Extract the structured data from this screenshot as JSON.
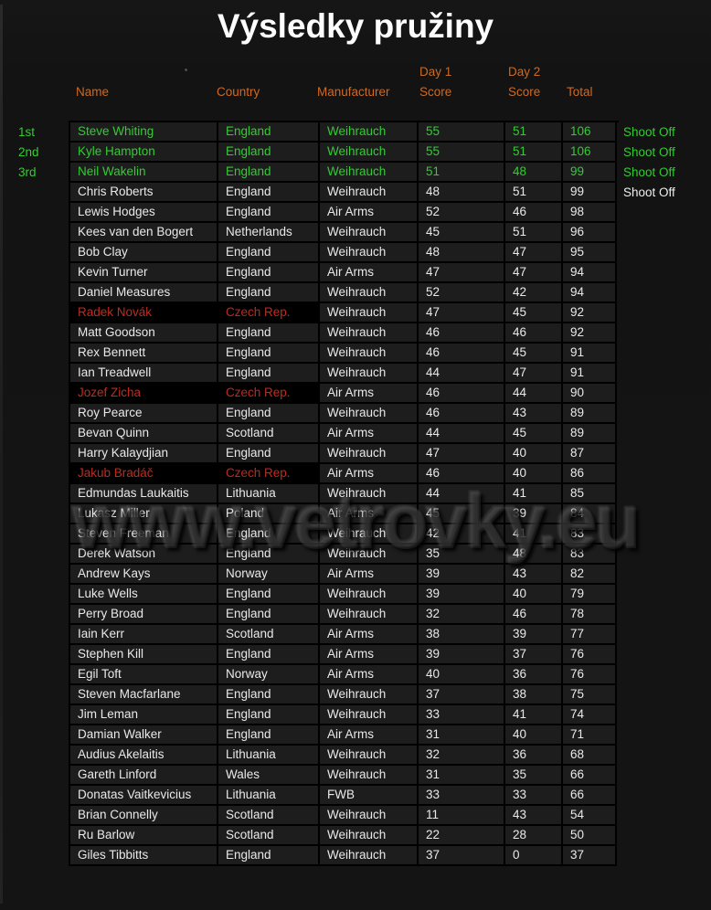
{
  "title": "Výsledky pružiny",
  "watermark": "www.vetrovky.eu",
  "colors": {
    "accent_orange": "#cd6a24",
    "highlight_green": "#33cc33",
    "highlight_red": "#bf2b1f",
    "row_background": "#1d1d1d",
    "czech_cell_background": "#000000",
    "grid": "#000000",
    "text": "#e9e9e9",
    "page_background": "#141414"
  },
  "header": {
    "name": "Name",
    "country": "Country",
    "manufacturer": "Manufacturer",
    "day1": "Day 1",
    "day2": "Day 2",
    "score": "Score",
    "total": "Total"
  },
  "table": {
    "rows": [
      {
        "rank": "1st",
        "name": "Steve Whiting",
        "country": "England",
        "manufacturer": "Weihrauch",
        "day1": "55",
        "day2": "51",
        "total": "106",
        "note": "Shoot Off",
        "style": "top"
      },
      {
        "rank": "2nd",
        "name": "Kyle Hampton",
        "country": "England",
        "manufacturer": "Weihrauch",
        "day1": "55",
        "day2": "51",
        "total": "106",
        "note": "Shoot Off",
        "style": "top"
      },
      {
        "rank": "3rd",
        "name": "Neil Wakelin",
        "country": "England",
        "manufacturer": "Weihrauch",
        "day1": "51",
        "day2": "48",
        "total": "99",
        "note": "Shoot Off",
        "style": "top"
      },
      {
        "rank": "",
        "name": "Chris Roberts",
        "country": "England",
        "manufacturer": "Weihrauch",
        "day1": "48",
        "day2": "51",
        "total": "99",
        "note": "Shoot Off",
        "style": ""
      },
      {
        "rank": "",
        "name": "Lewis Hodges",
        "country": "England",
        "manufacturer": "Air Arms",
        "day1": "52",
        "day2": "46",
        "total": "98",
        "note": "",
        "style": ""
      },
      {
        "rank": "",
        "name": "Kees van den Bogert",
        "country": "Netherlands",
        "manufacturer": "Weihrauch",
        "day1": "45",
        "day2": "51",
        "total": "96",
        "note": "",
        "style": ""
      },
      {
        "rank": "",
        "name": "Bob Clay",
        "country": "England",
        "manufacturer": "Weihrauch",
        "day1": "48",
        "day2": "47",
        "total": "95",
        "note": "",
        "style": ""
      },
      {
        "rank": "",
        "name": "Kevin Turner",
        "country": "England",
        "manufacturer": "Air Arms",
        "day1": "47",
        "day2": "47",
        "total": "94",
        "note": "",
        "style": ""
      },
      {
        "rank": "",
        "name": "Daniel Measures",
        "country": "England",
        "manufacturer": "Weihrauch",
        "day1": "52",
        "day2": "42",
        "total": "94",
        "note": "",
        "style": ""
      },
      {
        "rank": "",
        "name": "Radek Novák",
        "country": "Czech Rep.",
        "manufacturer": "Weihrauch",
        "day1": "47",
        "day2": "45",
        "total": "92",
        "note": "",
        "style": "cz"
      },
      {
        "rank": "",
        "name": "Matt Goodson",
        "country": "England",
        "manufacturer": "Weihrauch",
        "day1": "46",
        "day2": "46",
        "total": "92",
        "note": "",
        "style": ""
      },
      {
        "rank": "",
        "name": "Rex Bennett",
        "country": "England",
        "manufacturer": "Weihrauch",
        "day1": "46",
        "day2": "45",
        "total": "91",
        "note": "",
        "style": ""
      },
      {
        "rank": "",
        "name": "Ian Treadwell",
        "country": "England",
        "manufacturer": "Weihrauch",
        "day1": "44",
        "day2": "47",
        "total": "91",
        "note": "",
        "style": ""
      },
      {
        "rank": "",
        "name": "Jozef Zicha",
        "country": "Czech Rep.",
        "manufacturer": "Air Arms",
        "day1": "46",
        "day2": "44",
        "total": "90",
        "note": "",
        "style": "cz"
      },
      {
        "rank": "",
        "name": "Roy Pearce",
        "country": "England",
        "manufacturer": "Weihrauch",
        "day1": "46",
        "day2": "43",
        "total": "89",
        "note": "",
        "style": ""
      },
      {
        "rank": "",
        "name": "Bevan Quinn",
        "country": "Scotland",
        "manufacturer": "Air Arms",
        "day1": "44",
        "day2": "45",
        "total": "89",
        "note": "",
        "style": ""
      },
      {
        "rank": "",
        "name": "Harry Kalaydjian",
        "country": "England",
        "manufacturer": "Weihrauch",
        "day1": "47",
        "day2": "40",
        "total": "87",
        "note": "",
        "style": ""
      },
      {
        "rank": "",
        "name": "Jakub Bradáč",
        "country": "Czech Rep.",
        "manufacturer": "Air Arms",
        "day1": "46",
        "day2": "40",
        "total": "86",
        "note": "",
        "style": "cz"
      },
      {
        "rank": "",
        "name": "Edmundas Laukaitis",
        "country": "Lithuania",
        "manufacturer": "Weihrauch",
        "day1": "44",
        "day2": "41",
        "total": "85",
        "note": "",
        "style": ""
      },
      {
        "rank": "",
        "name": "Lukasz Miller",
        "country": "Poland",
        "manufacturer": "Air Arms",
        "day1": "45",
        "day2": "39",
        "total": "84",
        "note": "",
        "style": ""
      },
      {
        "rank": "",
        "name": "Steven Freeman",
        "country": "England",
        "manufacturer": "Weihrauch",
        "day1": "42",
        "day2": "41",
        "total": "83",
        "note": "",
        "style": ""
      },
      {
        "rank": "",
        "name": "Derek Watson",
        "country": "England",
        "manufacturer": "Weihrauch",
        "day1": "35",
        "day2": "48",
        "total": "83",
        "note": "",
        "style": ""
      },
      {
        "rank": "",
        "name": "Andrew Kays",
        "country": "Norway",
        "manufacturer": "Air Arms",
        "day1": "39",
        "day2": "43",
        "total": "82",
        "note": "",
        "style": ""
      },
      {
        "rank": "",
        "name": "Luke Wells",
        "country": "England",
        "manufacturer": "Weihrauch",
        "day1": "39",
        "day2": "40",
        "total": "79",
        "note": "",
        "style": ""
      },
      {
        "rank": "",
        "name": "Perry Broad",
        "country": "England",
        "manufacturer": "Weihrauch",
        "day1": "32",
        "day2": "46",
        "total": "78",
        "note": "",
        "style": ""
      },
      {
        "rank": "",
        "name": "Iain Kerr",
        "country": "Scotland",
        "manufacturer": "Air Arms",
        "day1": "38",
        "day2": "39",
        "total": "77",
        "note": "",
        "style": ""
      },
      {
        "rank": "",
        "name": "Stephen Kill",
        "country": "England",
        "manufacturer": "Air Arms",
        "day1": "39",
        "day2": "37",
        "total": "76",
        "note": "",
        "style": ""
      },
      {
        "rank": "",
        "name": "Egil Toft",
        "country": "Norway",
        "manufacturer": "Air Arms",
        "day1": "40",
        "day2": "36",
        "total": "76",
        "note": "",
        "style": ""
      },
      {
        "rank": "",
        "name": "Steven Macfarlane",
        "country": "England",
        "manufacturer": "Weihrauch",
        "day1": "37",
        "day2": "38",
        "total": "75",
        "note": "",
        "style": ""
      },
      {
        "rank": "",
        "name": "Jim Leman",
        "country": "England",
        "manufacturer": "Weihrauch",
        "day1": "33",
        "day2": "41",
        "total": "74",
        "note": "",
        "style": ""
      },
      {
        "rank": "",
        "name": "Damian Walker",
        "country": "England",
        "manufacturer": "Air Arms",
        "day1": "31",
        "day2": "40",
        "total": "71",
        "note": "",
        "style": ""
      },
      {
        "rank": "",
        "name": "Audius Akelaitis",
        "country": "Lithuania",
        "manufacturer": "Weihrauch",
        "day1": "32",
        "day2": "36",
        "total": "68",
        "note": "",
        "style": ""
      },
      {
        "rank": "",
        "name": "Gareth Linford",
        "country": "Wales",
        "manufacturer": "Weihrauch",
        "day1": "31",
        "day2": "35",
        "total": "66",
        "note": "",
        "style": ""
      },
      {
        "rank": "",
        "name": "Donatas Vaitkevicius",
        "country": "Lithuania",
        "manufacturer": "FWB",
        "day1": "33",
        "day2": "33",
        "total": "66",
        "note": "",
        "style": ""
      },
      {
        "rank": "",
        "name": "Brian Connelly",
        "country": "Scotland",
        "manufacturer": "Weihrauch",
        "day1": "11",
        "day2": "43",
        "total": "54",
        "note": "",
        "style": ""
      },
      {
        "rank": "",
        "name": "Ru Barlow",
        "country": "Scotland",
        "manufacturer": "Weihrauch",
        "day1": "22",
        "day2": "28",
        "total": "50",
        "note": "",
        "style": ""
      },
      {
        "rank": "",
        "name": "Giles Tibbitts",
        "country": "England",
        "manufacturer": "Weihrauch",
        "day1": "37",
        "day2": "0",
        "total": "37",
        "note": "",
        "style": ""
      }
    ]
  }
}
